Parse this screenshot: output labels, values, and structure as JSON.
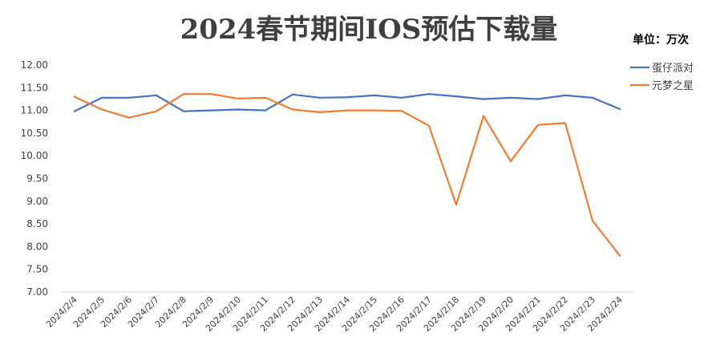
{
  "chart_data": {
    "type": "line",
    "title": "2024春节期间IOS预估下载量",
    "unit_label": "单位：万次",
    "xlabel": "",
    "ylabel": "",
    "ylim": [
      7.0,
      12.0
    ],
    "ytick_step": 0.5,
    "ytick_labels": [
      "7.00",
      "7.50",
      "8.00",
      "8.50",
      "9.00",
      "9.50",
      "10.00",
      "10.50",
      "11.00",
      "11.50",
      "12.00"
    ],
    "grid": false,
    "legend_position": "right",
    "categories": [
      "2024/2/4",
      "2024/2/5",
      "2024/2/6",
      "2024/2/7",
      "2024/2/8",
      "2024/2/9",
      "2024/2/10",
      "2024/2/11",
      "2024/2/12",
      "2024/2/13",
      "2024/2/14",
      "2024/2/15",
      "2024/2/16",
      "2024/2/17",
      "2024/2/18",
      "2024/2/19",
      "2024/2/20",
      "2024/2/21",
      "2024/2/22",
      "2024/2/23",
      "2024/2/24"
    ],
    "series": [
      {
        "name": "蛋仔派对",
        "color": "#4472c4",
        "values": [
          10.98,
          11.28,
          11.28,
          11.33,
          10.98,
          11.0,
          11.02,
          11.0,
          11.35,
          11.28,
          11.29,
          11.33,
          11.28,
          11.36,
          11.31,
          11.25,
          11.28,
          11.25,
          11.33,
          11.28,
          11.03
        ]
      },
      {
        "name": "元梦之星",
        "color": "#ed7d31",
        "values": [
          11.3,
          11.02,
          10.84,
          10.98,
          11.36,
          11.36,
          11.26,
          11.28,
          11.02,
          10.96,
          11.0,
          11.0,
          10.99,
          10.66,
          8.92,
          10.88,
          9.88,
          10.68,
          10.72,
          8.57,
          7.8
        ]
      }
    ]
  }
}
